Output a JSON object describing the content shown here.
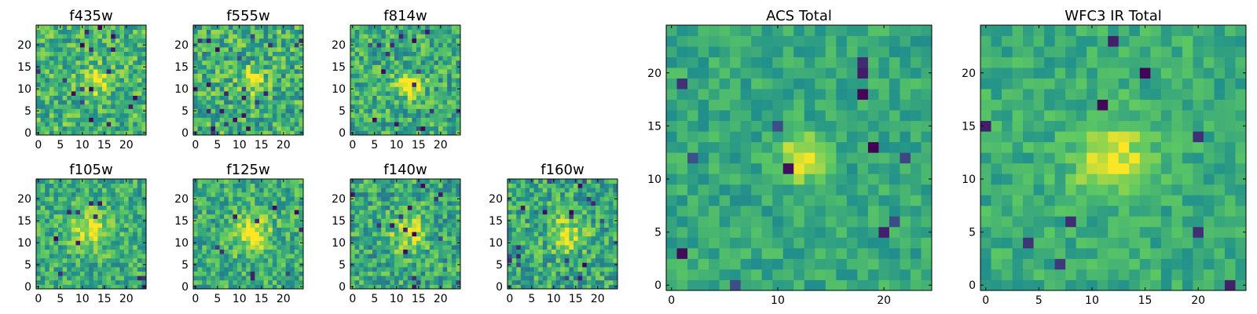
{
  "colormap": [
    "#440154",
    "#3b528b",
    "#21918c",
    "#5ec962",
    "#fde725"
  ],
  "chart_data": [
    {
      "type": "heatmap",
      "title": "f435w",
      "grid_size": 25,
      "xlim": [
        0,
        24
      ],
      "ylim": [
        0,
        24
      ],
      "xticks": [
        0,
        5,
        10,
        15,
        20
      ],
      "yticks": [
        0,
        5,
        10,
        15,
        20
      ],
      "xtick_labels": [
        "0",
        "5",
        "10",
        "15",
        "20"
      ],
      "ytick_labels": [
        "0",
        "5",
        "10",
        "15",
        "20"
      ],
      "peak": {
        "x": 13,
        "y": 12,
        "sigma": 2.2,
        "amplitude": 0.35
      },
      "base": 0.65,
      "noise": 0.22,
      "outlier_rate": 0.02,
      "seed": 11
    },
    {
      "type": "heatmap",
      "title": "f555w",
      "grid_size": 25,
      "xlim": [
        0,
        24
      ],
      "ylim": [
        0,
        24
      ],
      "xticks": [
        0,
        5,
        10,
        15,
        20
      ],
      "yticks": [
        0,
        5,
        10,
        15,
        20
      ],
      "xtick_labels": [
        "0",
        "5",
        "10",
        "15",
        "20"
      ],
      "ytick_labels": [
        "0",
        "5",
        "10",
        "15",
        "20"
      ],
      "peak": {
        "x": 13,
        "y": 12,
        "sigma": 2.0,
        "amplitude": 0.35
      },
      "base": 0.63,
      "noise": 0.24,
      "outlier_rate": 0.03,
      "seed": 23
    },
    {
      "type": "heatmap",
      "title": "f814w",
      "grid_size": 25,
      "xlim": [
        0,
        24
      ],
      "ylim": [
        0,
        24
      ],
      "xticks": [
        0,
        5,
        10,
        15,
        20
      ],
      "yticks": [
        0,
        5,
        10,
        15,
        20
      ],
      "xtick_labels": [
        "0",
        "5",
        "10",
        "15",
        "20"
      ],
      "ytick_labels": [
        "0",
        "5",
        "10",
        "15",
        "20"
      ],
      "peak": {
        "x": 13,
        "y": 11,
        "sigma": 2.0,
        "amplitude": 0.45
      },
      "base": 0.62,
      "noise": 0.22,
      "outlier_rate": 0.02,
      "seed": 37
    },
    {
      "type": "heatmap",
      "title": "f105w",
      "grid_size": 25,
      "xlim": [
        0,
        24
      ],
      "ylim": [
        0,
        24
      ],
      "xticks": [
        0,
        5,
        10,
        15,
        20
      ],
      "yticks": [
        0,
        5,
        10,
        15,
        20
      ],
      "xtick_labels": [
        "0",
        "5",
        "10",
        "15",
        "20"
      ],
      "ytick_labels": [
        "0",
        "5",
        "10",
        "15",
        "20"
      ],
      "peak": {
        "x": 12,
        "y": 13,
        "sigma": 3.0,
        "amplitude": 0.35
      },
      "base": 0.62,
      "noise": 0.2,
      "outlier_rate": 0.02,
      "seed": 41
    },
    {
      "type": "heatmap",
      "title": "f125w",
      "grid_size": 25,
      "xlim": [
        0,
        24
      ],
      "ylim": [
        0,
        24
      ],
      "xticks": [
        0,
        5,
        10,
        15,
        20
      ],
      "yticks": [
        0,
        5,
        10,
        15,
        20
      ],
      "xtick_labels": [
        "0",
        "5",
        "10",
        "15",
        "20"
      ],
      "ytick_labels": [
        "0",
        "5",
        "10",
        "15",
        "20"
      ],
      "peak": {
        "x": 13,
        "y": 12,
        "sigma": 3.0,
        "amplitude": 0.35
      },
      "base": 0.62,
      "noise": 0.2,
      "outlier_rate": 0.02,
      "seed": 53
    },
    {
      "type": "heatmap",
      "title": "f140w",
      "grid_size": 25,
      "xlim": [
        0,
        24
      ],
      "ylim": [
        0,
        24
      ],
      "xticks": [
        0,
        5,
        10,
        15,
        20
      ],
      "yticks": [
        0,
        5,
        10,
        15,
        20
      ],
      "xtick_labels": [
        "0",
        "5",
        "10",
        "15",
        "20"
      ],
      "ytick_labels": [
        "0",
        "5",
        "10",
        "15",
        "20"
      ],
      "peak": {
        "x": 13,
        "y": 12,
        "sigma": 3.0,
        "amplitude": 0.3
      },
      "base": 0.6,
      "noise": 0.22,
      "outlier_rate": 0.03,
      "seed": 67
    },
    {
      "type": "heatmap",
      "title": "f160w",
      "grid_size": 25,
      "xlim": [
        0,
        24
      ],
      "ylim": [
        0,
        24
      ],
      "xticks": [
        0,
        5,
        10,
        15,
        20
      ],
      "yticks": [
        0,
        5,
        10,
        15,
        20
      ],
      "xtick_labels": [
        "0",
        "5",
        "10",
        "15",
        "20"
      ],
      "ytick_labels": [
        "0",
        "5",
        "10",
        "15",
        "20"
      ],
      "peak": {
        "x": 13,
        "y": 12,
        "sigma": 3.0,
        "amplitude": 0.3
      },
      "base": 0.6,
      "noise": 0.22,
      "outlier_rate": 0.03,
      "seed": 79
    },
    {
      "type": "heatmap",
      "title": "ACS Total",
      "grid_size": 25,
      "xlim": [
        0,
        24
      ],
      "ylim": [
        0,
        24
      ],
      "xticks": [
        0,
        10,
        20
      ],
      "yticks": [
        0,
        5,
        10,
        15,
        20
      ],
      "xtick_labels": [
        "0",
        "10",
        "20"
      ],
      "ytick_labels": [
        "0",
        "5",
        "10",
        "15",
        "20"
      ],
      "peak": {
        "x": 12.5,
        "y": 12,
        "sigma": 1.6,
        "amplitude": 0.4
      },
      "base": 0.6,
      "noise": 0.12,
      "outlier_rate": 0.025,
      "seed": 97
    },
    {
      "type": "heatmap",
      "title": "WFC3 IR Total",
      "grid_size": 25,
      "xlim": [
        0,
        24
      ],
      "ylim": [
        0,
        24
      ],
      "xticks": [
        0,
        5,
        10,
        15,
        20
      ],
      "yticks": [
        0,
        5,
        10,
        15,
        20
      ],
      "xtick_labels": [
        "0",
        "5",
        "10",
        "15",
        "20"
      ],
      "ytick_labels": [
        "0",
        "5",
        "10",
        "15",
        "20"
      ],
      "peak": {
        "x": 12,
        "y": 12,
        "sigma": 2.5,
        "amplitude": 0.35
      },
      "base": 0.62,
      "noise": 0.12,
      "outlier_rate": 0.02,
      "seed": 131
    }
  ]
}
